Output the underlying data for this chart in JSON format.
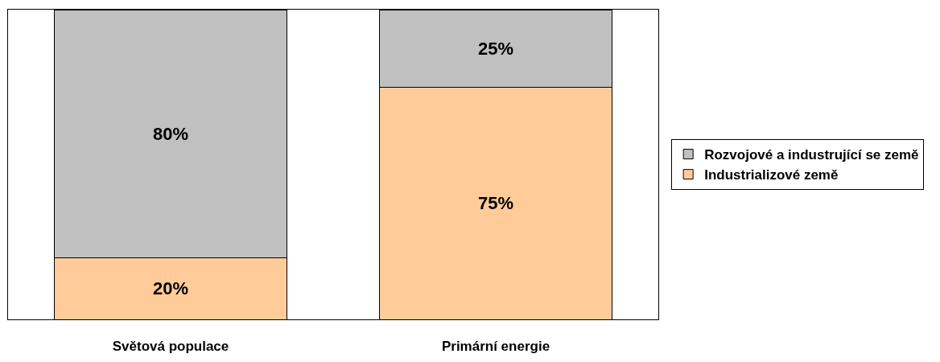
{
  "chart_data": {
    "type": "bar",
    "stacked": true,
    "categories": [
      "Světová populace",
      "Primární energie"
    ],
    "series": [
      {
        "name": "Industrializové země",
        "color": "#ffcc99",
        "values": [
          20,
          75
        ],
        "value_labels": [
          "20%",
          "75%"
        ]
      },
      {
        "name": "Rozvojové a industrující se země",
        "color": "#c0c0c0",
        "values": [
          80,
          25
        ],
        "value_labels": [
          "80%",
          "25%"
        ]
      }
    ],
    "ylim": [
      0,
      100
    ],
    "tick_labels": "x",
    "legend": "right"
  }
}
